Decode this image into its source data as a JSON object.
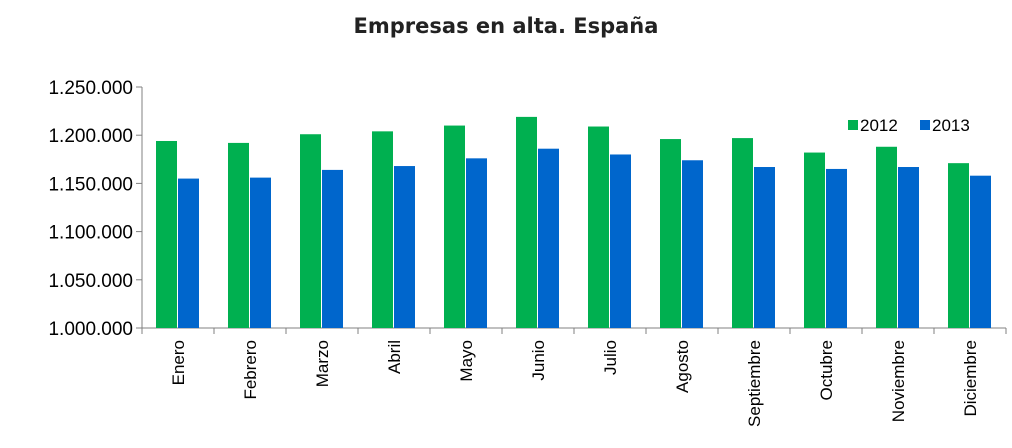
{
  "chart_data": {
    "type": "bar",
    "title": "Empresas en alta. España",
    "xlabel": "",
    "ylabel": "",
    "categories": [
      "Enero",
      "Febrero",
      "Marzo",
      "Abril",
      "Mayo",
      "Junio",
      "Julio",
      "Agosto",
      "Septiembre",
      "Octubre",
      "Noviembre",
      "Diciembre"
    ],
    "series": [
      {
        "name": "2012",
        "color": "#00B050",
        "values": [
          1194000,
          1192000,
          1201000,
          1204000,
          1210000,
          1219000,
          1209000,
          1196000,
          1197000,
          1182000,
          1188000,
          1171000
        ]
      },
      {
        "name": "2013",
        "color": "#0066CC",
        "values": [
          1155000,
          1156000,
          1164000,
          1168000,
          1176000,
          1186000,
          1180000,
          1174000,
          1167000,
          1165000,
          1167000,
          1158000
        ]
      }
    ],
    "ylim": [
      1000000,
      1250000
    ],
    "yticks": [
      "1.000.000",
      "1.050.000",
      "1.100.000",
      "1.150.000",
      "1.200.000",
      "1.250.000"
    ],
    "grid": false,
    "legend_position": "top-right"
  }
}
